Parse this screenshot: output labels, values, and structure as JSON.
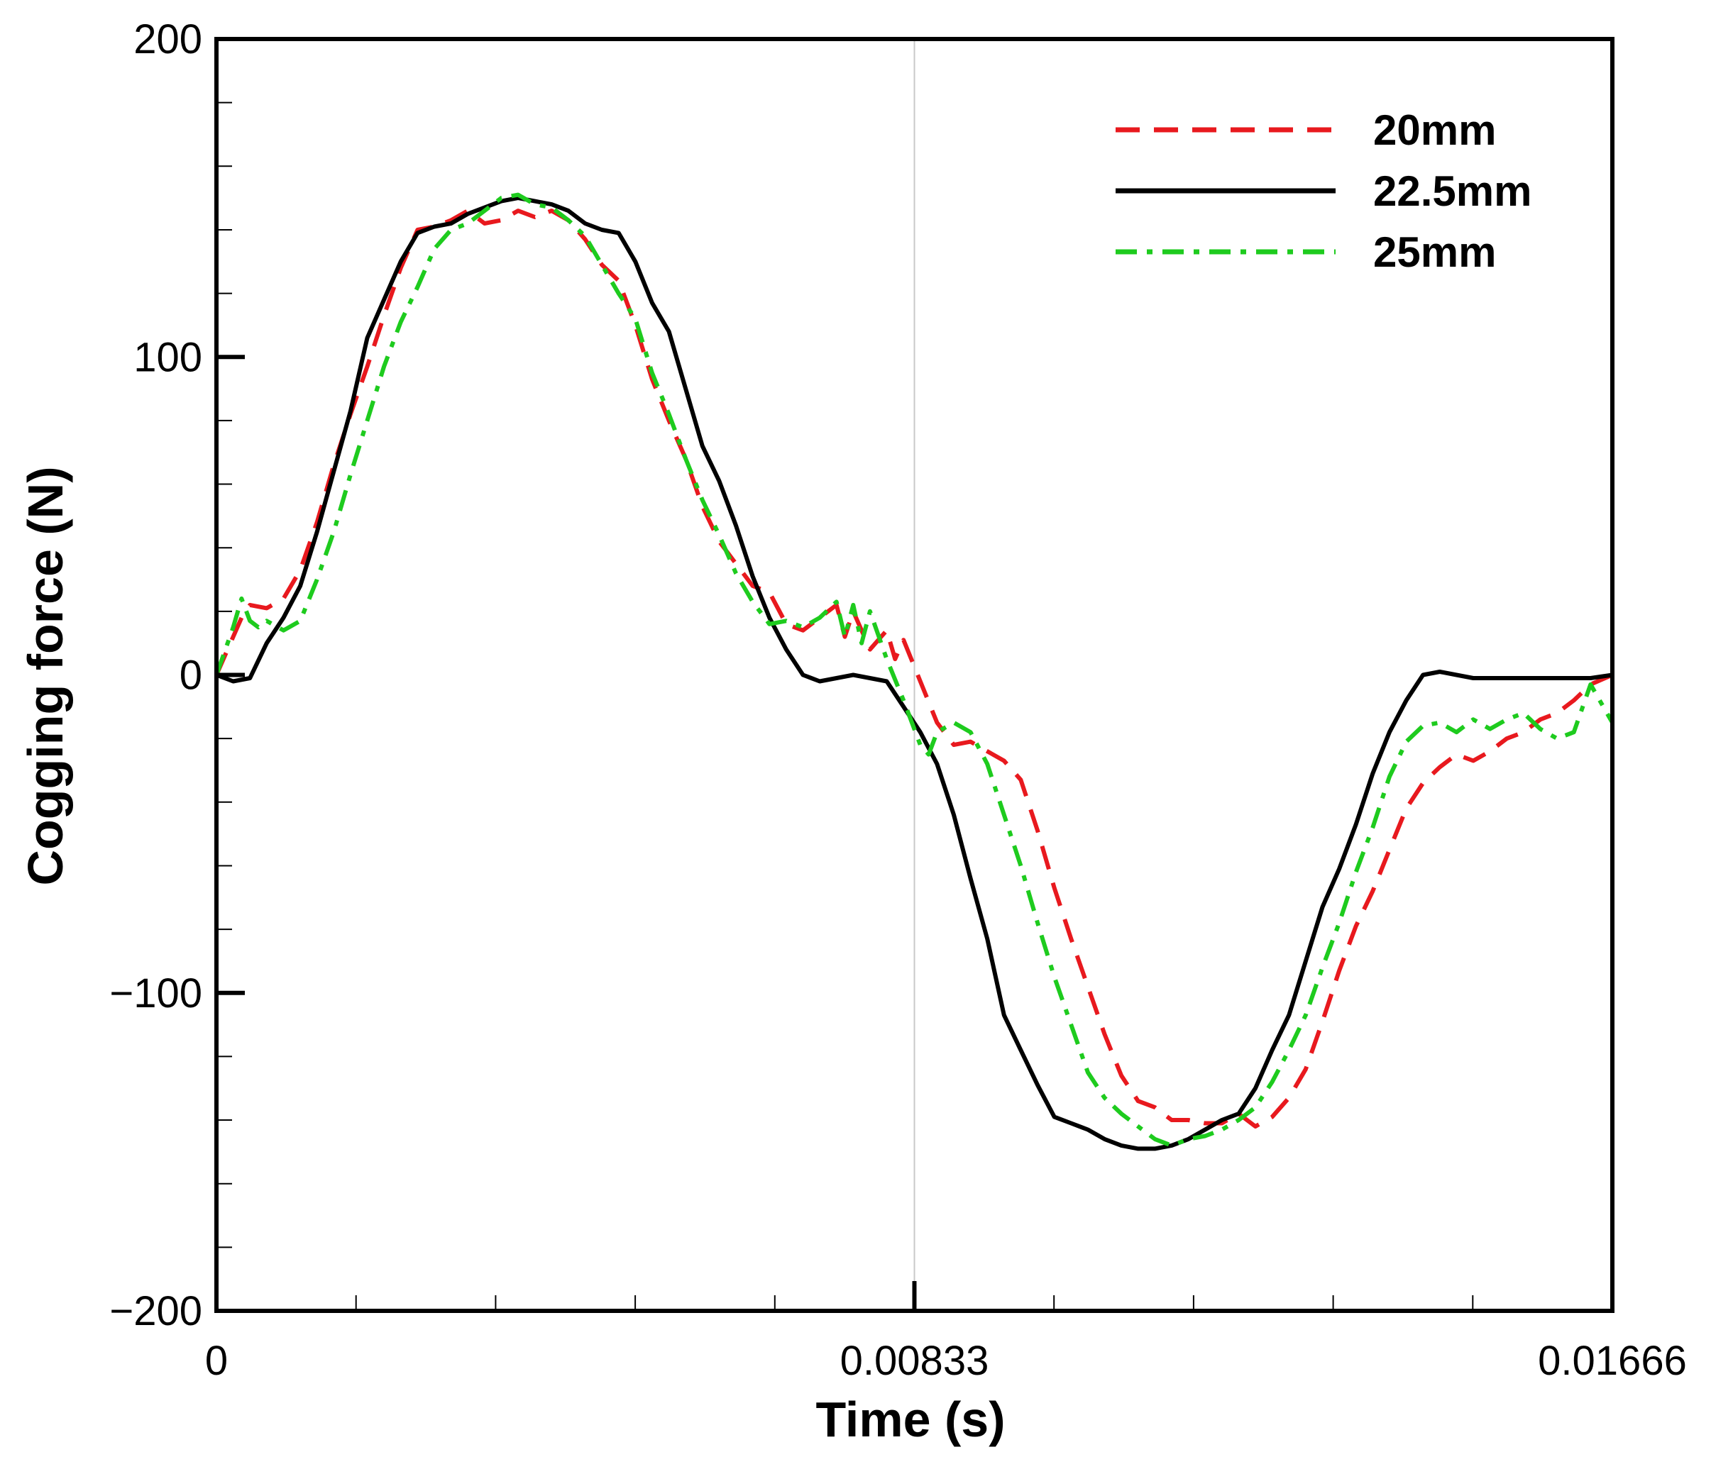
{
  "chart_data": {
    "type": "line",
    "title": "",
    "xlabel": "Time (s)",
    "ylabel": "Cogging force (N)",
    "xlim": [
      0,
      0.01666
    ],
    "ylim": [
      -200,
      200
    ],
    "x_ticks": [
      {
        "value": 0,
        "label": "0"
      },
      {
        "value": 0.00833,
        "label": "0.00833"
      },
      {
        "value": 0.01666,
        "label": "0.01666"
      }
    ],
    "y_ticks": [
      {
        "value": 200,
        "label": "200"
      },
      {
        "value": 100,
        "label": "100"
      },
      {
        "value": 0,
        "label": "0"
      },
      {
        "value": -100,
        "label": "−100"
      },
      {
        "value": -200,
        "label": "−200"
      }
    ],
    "x_minor_step": 0.001666,
    "y_minor_step": 20,
    "vertical_reference_x": 0.00833,
    "legend_position": "top-right",
    "series": [
      {
        "name": "20mm",
        "color": "#e8191e",
        "style": "dashed",
        "points": [
          [
            0,
            0
          ],
          [
            0.0002,
            12
          ],
          [
            0.0003,
            18
          ],
          [
            0.0004,
            22
          ],
          [
            0.0006,
            21
          ],
          [
            0.0008,
            24
          ],
          [
            0.001,
            33
          ],
          [
            0.0012,
            48
          ],
          [
            0.0014,
            66
          ],
          [
            0.0016,
            82
          ],
          [
            0.0018,
            97
          ],
          [
            0.002,
            113
          ],
          [
            0.0022,
            128
          ],
          [
            0.0024,
            140
          ],
          [
            0.0026,
            141
          ],
          [
            0.0028,
            143
          ],
          [
            0.003,
            146
          ],
          [
            0.0032,
            142
          ],
          [
            0.0034,
            143
          ],
          [
            0.0036,
            146
          ],
          [
            0.0038,
            144
          ],
          [
            0.004,
            146
          ],
          [
            0.0042,
            143
          ],
          [
            0.0044,
            137
          ],
          [
            0.0046,
            129
          ],
          [
            0.0048,
            124
          ],
          [
            0.005,
            110
          ],
          [
            0.0052,
            93
          ],
          [
            0.0054,
            80
          ],
          [
            0.0056,
            68
          ],
          [
            0.0058,
            53
          ],
          [
            0.006,
            42
          ],
          [
            0.0062,
            35
          ],
          [
            0.0064,
            28
          ],
          [
            0.0066,
            26
          ],
          [
            0.0068,
            16
          ],
          [
            0.007,
            14
          ],
          [
            0.0072,
            18
          ],
          [
            0.0074,
            22
          ],
          [
            0.0075,
            12
          ],
          [
            0.0076,
            20
          ],
          [
            0.0078,
            8
          ],
          [
            0.008,
            14
          ],
          [
            0.0081,
            5
          ],
          [
            0.0082,
            11
          ],
          [
            0.0084,
            -2
          ],
          [
            0.0086,
            -15
          ],
          [
            0.0088,
            -22
          ],
          [
            0.009,
            -21
          ],
          [
            0.0092,
            -24
          ],
          [
            0.0094,
            -27
          ],
          [
            0.0096,
            -33
          ],
          [
            0.0098,
            -49
          ],
          [
            0.01,
            -67
          ],
          [
            0.0102,
            -83
          ],
          [
            0.0104,
            -98
          ],
          [
            0.0106,
            -113
          ],
          [
            0.0108,
            -126
          ],
          [
            0.011,
            -134
          ],
          [
            0.0112,
            -136
          ],
          [
            0.0114,
            -140
          ],
          [
            0.0116,
            -140
          ],
          [
            0.0118,
            -141
          ],
          [
            0.012,
            -141
          ],
          [
            0.0122,
            -138
          ],
          [
            0.0124,
            -142
          ],
          [
            0.0126,
            -139
          ],
          [
            0.0128,
            -133
          ],
          [
            0.013,
            -124
          ],
          [
            0.0132,
            -109
          ],
          [
            0.0134,
            -93
          ],
          [
            0.0136,
            -79
          ],
          [
            0.0138,
            -68
          ],
          [
            0.014,
            -55
          ],
          [
            0.0142,
            -42
          ],
          [
            0.0144,
            -34
          ],
          [
            0.0146,
            -29
          ],
          [
            0.0148,
            -25
          ],
          [
            0.015,
            -27
          ],
          [
            0.0152,
            -24
          ],
          [
            0.0154,
            -20
          ],
          [
            0.0156,
            -18
          ],
          [
            0.0158,
            -14
          ],
          [
            0.016,
            -12
          ],
          [
            0.0162,
            -8
          ],
          [
            0.0164,
            -3
          ],
          [
            0.01666,
            0
          ]
        ]
      },
      {
        "name": "22.5mm",
        "color": "#000000",
        "style": "solid",
        "points": [
          [
            0,
            0
          ],
          [
            0.0002,
            -2
          ],
          [
            0.0004,
            -1
          ],
          [
            0.0006,
            10
          ],
          [
            0.0008,
            18
          ],
          [
            0.001,
            28
          ],
          [
            0.0012,
            45
          ],
          [
            0.0014,
            64
          ],
          [
            0.0016,
            83
          ],
          [
            0.0018,
            106
          ],
          [
            0.002,
            118
          ],
          [
            0.0022,
            130
          ],
          [
            0.0024,
            139
          ],
          [
            0.0026,
            141
          ],
          [
            0.0028,
            142
          ],
          [
            0.003,
            145
          ],
          [
            0.0032,
            147
          ],
          [
            0.0034,
            149
          ],
          [
            0.0036,
            150
          ],
          [
            0.0038,
            149
          ],
          [
            0.004,
            148
          ],
          [
            0.0042,
            146
          ],
          [
            0.0044,
            142
          ],
          [
            0.0046,
            140
          ],
          [
            0.0048,
            139
          ],
          [
            0.005,
            130
          ],
          [
            0.0052,
            117
          ],
          [
            0.0054,
            108
          ],
          [
            0.0056,
            90
          ],
          [
            0.0058,
            72
          ],
          [
            0.006,
            61
          ],
          [
            0.0062,
            47
          ],
          [
            0.0064,
            31
          ],
          [
            0.0066,
            18
          ],
          [
            0.0068,
            8
          ],
          [
            0.007,
            0
          ],
          [
            0.0072,
            -2
          ],
          [
            0.0074,
            -1
          ],
          [
            0.0076,
            0
          ],
          [
            0.0078,
            -1
          ],
          [
            0.008,
            -2
          ],
          [
            0.0082,
            -10
          ],
          [
            0.0084,
            -18
          ],
          [
            0.0086,
            -28
          ],
          [
            0.0088,
            -44
          ],
          [
            0.009,
            -64
          ],
          [
            0.0092,
            -83
          ],
          [
            0.0094,
            -107
          ],
          [
            0.0096,
            -118
          ],
          [
            0.0098,
            -129
          ],
          [
            0.01,
            -139
          ],
          [
            0.0102,
            -141
          ],
          [
            0.0104,
            -143
          ],
          [
            0.0106,
            -146
          ],
          [
            0.0108,
            -148
          ],
          [
            0.011,
            -149
          ],
          [
            0.0112,
            -149
          ],
          [
            0.0114,
            -148
          ],
          [
            0.0116,
            -146
          ],
          [
            0.0118,
            -143
          ],
          [
            0.012,
            -140
          ],
          [
            0.0122,
            -138
          ],
          [
            0.0124,
            -130
          ],
          [
            0.0126,
            -118
          ],
          [
            0.0128,
            -107
          ],
          [
            0.013,
            -90
          ],
          [
            0.0132,
            -73
          ],
          [
            0.0134,
            -61
          ],
          [
            0.0136,
            -47
          ],
          [
            0.0138,
            -31
          ],
          [
            0.014,
            -18
          ],
          [
            0.0142,
            -8
          ],
          [
            0.0144,
            0
          ],
          [
            0.0146,
            1
          ],
          [
            0.0148,
            0
          ],
          [
            0.015,
            -1
          ],
          [
            0.0152,
            -1
          ],
          [
            0.0154,
            -1
          ],
          [
            0.0156,
            -1
          ],
          [
            0.0158,
            -1
          ],
          [
            0.016,
            -1
          ],
          [
            0.0162,
            -1
          ],
          [
            0.0164,
            -1
          ],
          [
            0.01666,
            0
          ]
        ]
      },
      {
        "name": "25mm",
        "color": "#1ecb1e",
        "style": "dashdot",
        "points": [
          [
            0,
            0
          ],
          [
            0.0002,
            15
          ],
          [
            0.0003,
            24
          ],
          [
            0.0004,
            17
          ],
          [
            0.0005,
            15
          ],
          [
            0.0006,
            17
          ],
          [
            0.0008,
            14
          ],
          [
            0.001,
            17
          ],
          [
            0.0012,
            30
          ],
          [
            0.0014,
            45
          ],
          [
            0.0016,
            63
          ],
          [
            0.0018,
            80
          ],
          [
            0.002,
            97
          ],
          [
            0.0022,
            111
          ],
          [
            0.0024,
            122
          ],
          [
            0.0026,
            134
          ],
          [
            0.0028,
            140
          ],
          [
            0.003,
            142
          ],
          [
            0.0032,
            146
          ],
          [
            0.0034,
            150
          ],
          [
            0.0036,
            151
          ],
          [
            0.0038,
            148
          ],
          [
            0.004,
            147
          ],
          [
            0.0042,
            143
          ],
          [
            0.0044,
            138
          ],
          [
            0.0046,
            129
          ],
          [
            0.0048,
            120
          ],
          [
            0.005,
            112
          ],
          [
            0.0052,
            95
          ],
          [
            0.0054,
            82
          ],
          [
            0.0056,
            68
          ],
          [
            0.0058,
            55
          ],
          [
            0.006,
            44
          ],
          [
            0.0062,
            32
          ],
          [
            0.0064,
            23
          ],
          [
            0.0066,
            16
          ],
          [
            0.0068,
            17
          ],
          [
            0.007,
            15
          ],
          [
            0.0072,
            18
          ],
          [
            0.0074,
            23
          ],
          [
            0.0075,
            12
          ],
          [
            0.0076,
            22
          ],
          [
            0.0077,
            10
          ],
          [
            0.0078,
            20
          ],
          [
            0.008,
            5
          ],
          [
            0.0082,
            -8
          ],
          [
            0.0084,
            -22
          ],
          [
            0.0085,
            -25
          ],
          [
            0.0086,
            -18
          ],
          [
            0.0088,
            -15
          ],
          [
            0.009,
            -18
          ],
          [
            0.0092,
            -28
          ],
          [
            0.0094,
            -44
          ],
          [
            0.0096,
            -60
          ],
          [
            0.0098,
            -78
          ],
          [
            0.01,
            -95
          ],
          [
            0.0102,
            -110
          ],
          [
            0.0104,
            -125
          ],
          [
            0.0106,
            -133
          ],
          [
            0.0108,
            -138
          ],
          [
            0.011,
            -142
          ],
          [
            0.0112,
            -146
          ],
          [
            0.0114,
            -148
          ],
          [
            0.0116,
            -146
          ],
          [
            0.0118,
            -145
          ],
          [
            0.012,
            -143
          ],
          [
            0.0122,
            -140
          ],
          [
            0.0124,
            -136
          ],
          [
            0.0126,
            -128
          ],
          [
            0.0128,
            -118
          ],
          [
            0.013,
            -107
          ],
          [
            0.0132,
            -92
          ],
          [
            0.0134,
            -78
          ],
          [
            0.0136,
            -62
          ],
          [
            0.0138,
            -48
          ],
          [
            0.014,
            -32
          ],
          [
            0.0142,
            -21
          ],
          [
            0.0144,
            -16
          ],
          [
            0.0146,
            -15
          ],
          [
            0.0148,
            -18
          ],
          [
            0.015,
            -14
          ],
          [
            0.0152,
            -17
          ],
          [
            0.0154,
            -14
          ],
          [
            0.0156,
            -12
          ],
          [
            0.0158,
            -17
          ],
          [
            0.016,
            -20
          ],
          [
            0.0162,
            -18
          ],
          [
            0.0164,
            -3
          ],
          [
            0.01666,
            -15
          ]
        ]
      }
    ]
  }
}
